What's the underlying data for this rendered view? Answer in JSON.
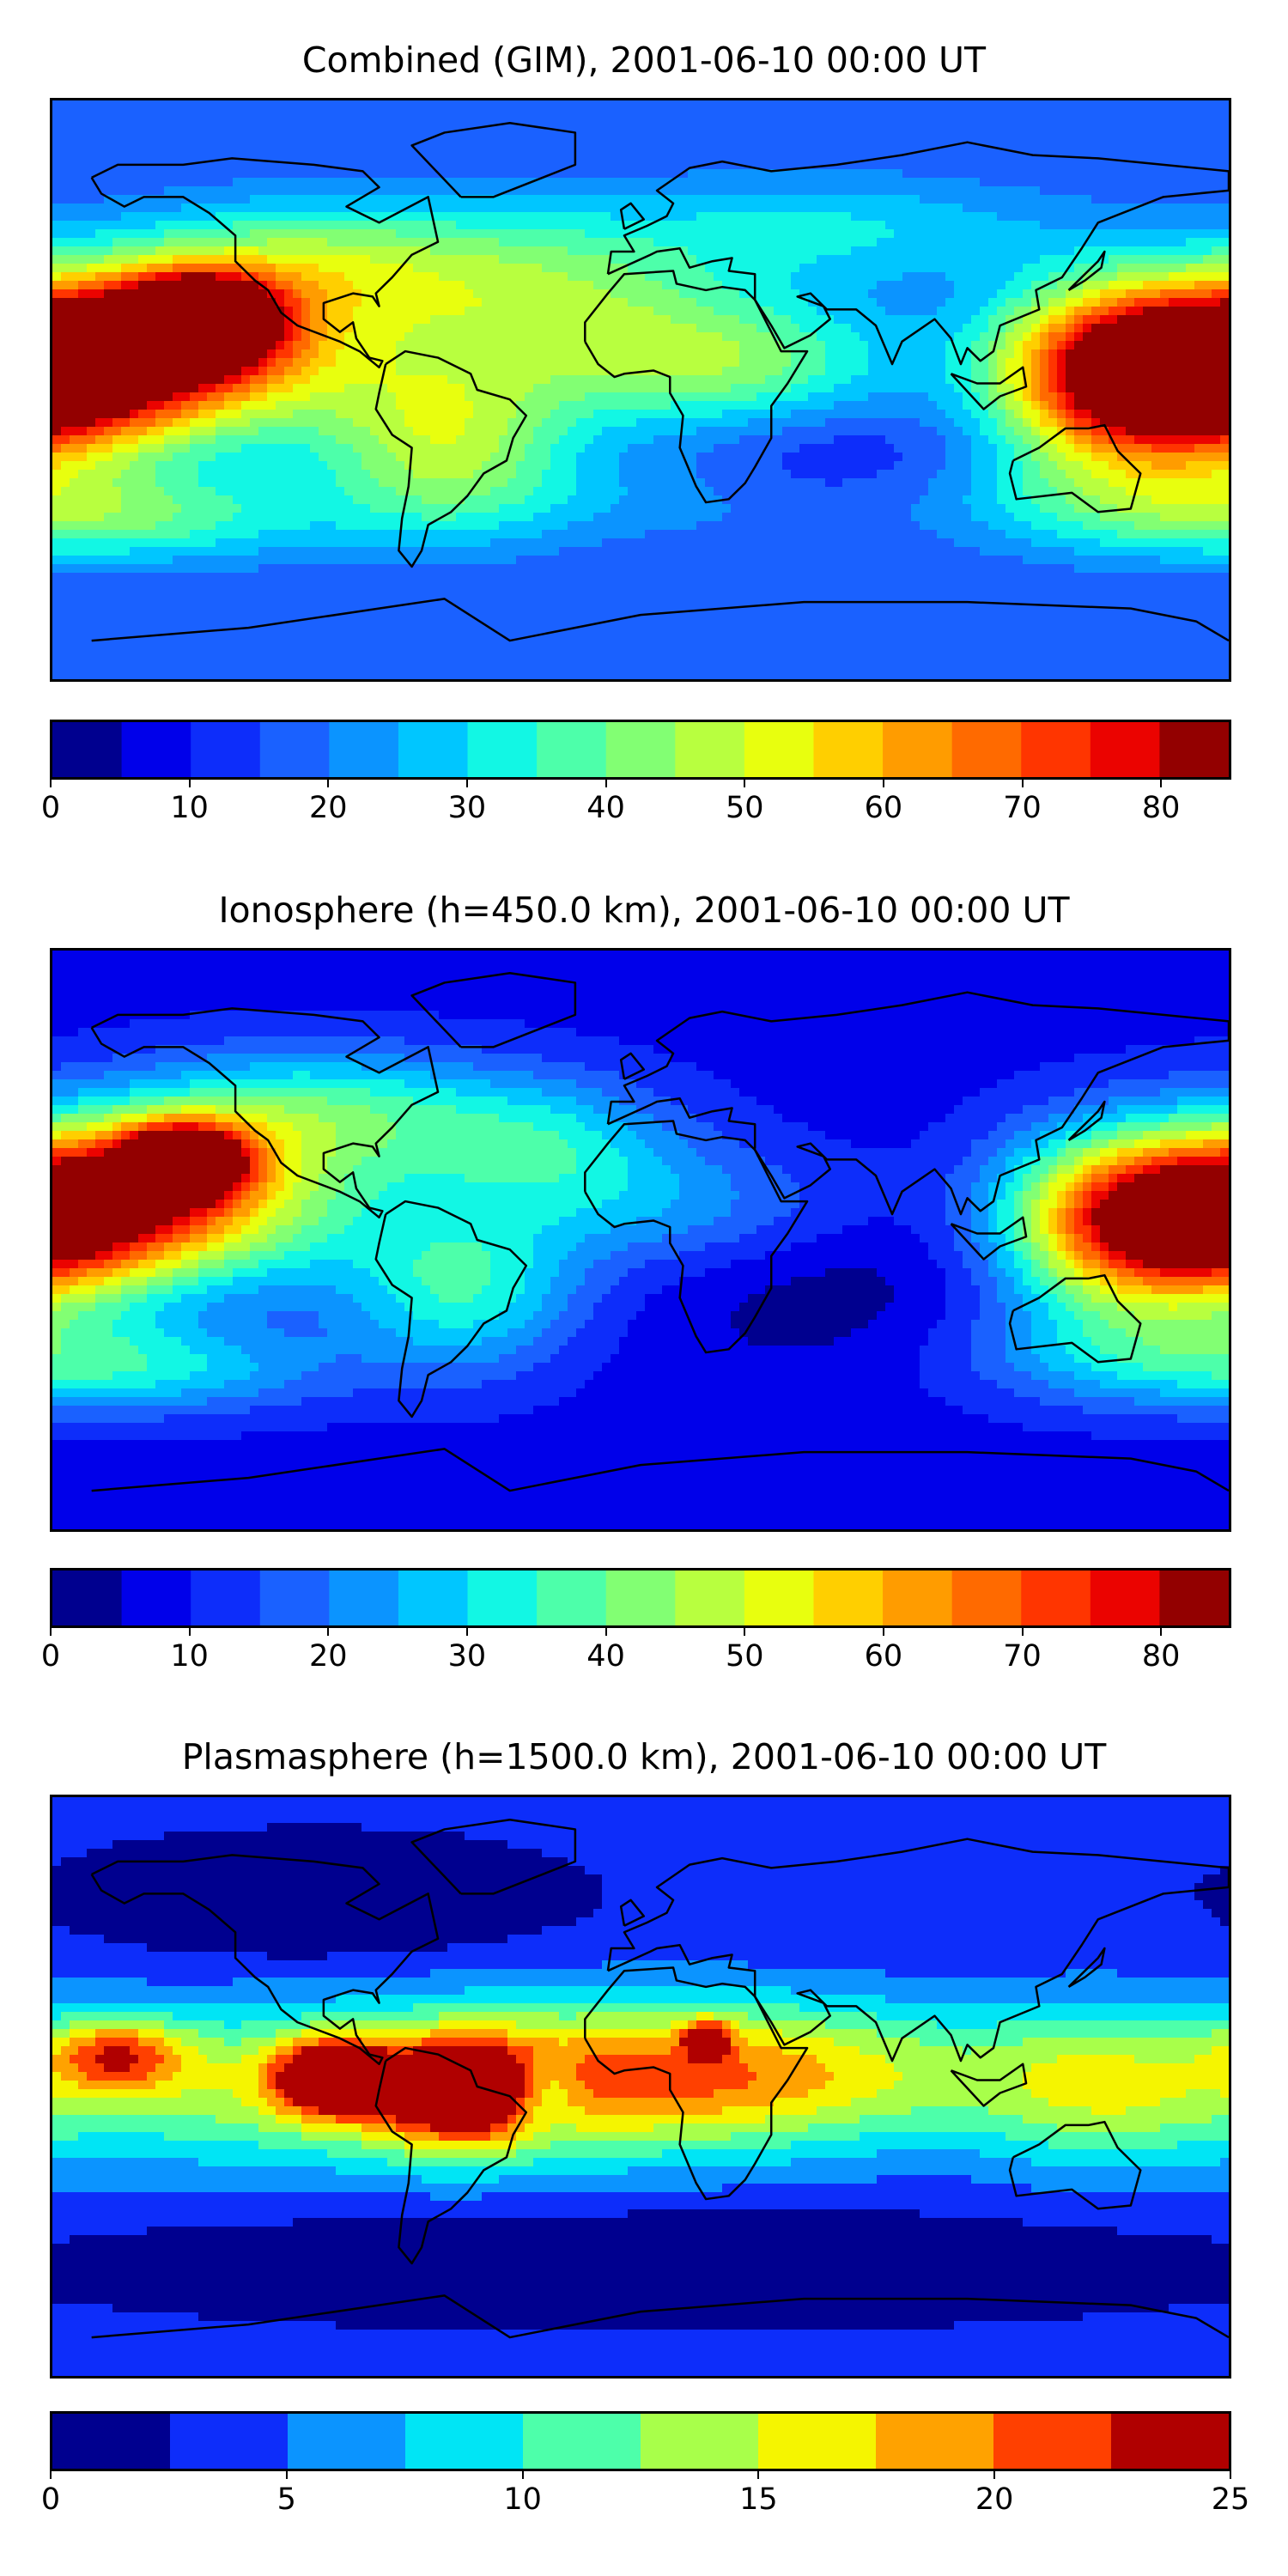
{
  "figure": {
    "background": "#ffffff"
  },
  "chart_data": [
    {
      "type": "heatmap",
      "title": "Combined (GIM), 2001-06-10 00:00 UT",
      "projection": "plate-carree",
      "xlim": [
        -180,
        180
      ],
      "ylim": [
        -90,
        90
      ],
      "base_value": 15,
      "hotspots": [
        {
          "lon": -150,
          "lat": 12,
          "value": 79,
          "sx": 42,
          "sy": 18
        },
        {
          "lon": -135,
          "lat": 22,
          "value": 81,
          "sx": 16,
          "sy": 9
        },
        {
          "lon": 170,
          "lat": 3,
          "value": 74,
          "sx": 30,
          "sy": 18
        },
        {
          "lon": 140,
          "lat": 5,
          "value": 50,
          "sx": 25,
          "sy": 20
        },
        {
          "lon": -60,
          "lat": -15,
          "value": 46,
          "sx": 28,
          "sy": 20
        },
        {
          "lon": 25,
          "lat": 8,
          "value": 42,
          "sx": 40,
          "sy": 15
        },
        {
          "lon": -30,
          "lat": 30,
          "value": 38,
          "sx": 40,
          "sy": 18
        },
        {
          "lon": -100,
          "lat": 40,
          "value": 38,
          "sx": 40,
          "sy": 14
        },
        {
          "lon": 60,
          "lat": 50,
          "value": 30,
          "sx": 50,
          "sy": 12
        },
        {
          "lon": -150,
          "lat": -40,
          "value": 34,
          "sx": 40,
          "sy": 10
        },
        {
          "lon": 150,
          "lat": -35,
          "value": 32,
          "sx": 40,
          "sy": 12
        },
        {
          "lon": 0,
          "lat": -35,
          "value": 22,
          "sx": 60,
          "sy": 10
        },
        {
          "lon": 60,
          "lat": -20,
          "value": 8,
          "sx": 30,
          "sy": 14
        }
      ],
      "colorbar": {
        "boundaries": [
          0,
          5,
          10,
          15,
          20,
          25,
          30,
          35,
          40,
          45,
          50,
          55,
          60,
          65,
          70,
          75,
          80,
          85
        ],
        "colors": [
          "#00008f",
          "#0000ea",
          "#0d2dfa",
          "#1a61ff",
          "#0b94ff",
          "#00c6ff",
          "#12f7e4",
          "#4dffaa",
          "#82ff73",
          "#b8ff3f",
          "#e8ff0e",
          "#ffcf00",
          "#ff9c00",
          "#ff6a00",
          "#ff3500",
          "#eb0300",
          "#930000"
        ],
        "ticks": [
          0,
          10,
          20,
          30,
          40,
          50,
          60,
          70,
          80
        ],
        "tick_labels": [
          "0",
          "10",
          "20",
          "30",
          "40",
          "50",
          "60",
          "70",
          "80"
        ]
      }
    },
    {
      "type": "heatmap",
      "title": "Ionosphere  (h=450.0 km), 2001-06-10 00:00 UT",
      "projection": "plate-carree",
      "xlim": [
        -180,
        180
      ],
      "ylim": [
        -90,
        90
      ],
      "base_value": 8,
      "hotspots": [
        {
          "lon": -150,
          "lat": 12,
          "value": 66,
          "sx": 42,
          "sy": 18
        },
        {
          "lon": -140,
          "lat": 25,
          "value": 68,
          "sx": 14,
          "sy": 8
        },
        {
          "lon": 170,
          "lat": 5,
          "value": 62,
          "sx": 28,
          "sy": 18
        },
        {
          "lon": 140,
          "lat": 5,
          "value": 38,
          "sx": 25,
          "sy": 20
        },
        {
          "lon": -55,
          "lat": -15,
          "value": 34,
          "sx": 26,
          "sy": 18
        },
        {
          "lon": -100,
          "lat": 40,
          "value": 34,
          "sx": 40,
          "sy": 14
        },
        {
          "lon": -30,
          "lat": 30,
          "value": 28,
          "sx": 30,
          "sy": 15
        },
        {
          "lon": 10,
          "lat": 10,
          "value": 22,
          "sx": 40,
          "sy": 14
        },
        {
          "lon": -150,
          "lat": -40,
          "value": 28,
          "sx": 40,
          "sy": 10
        },
        {
          "lon": 150,
          "lat": -35,
          "value": 24,
          "sx": 40,
          "sy": 12
        },
        {
          "lon": 60,
          "lat": -15,
          "value": 2,
          "sx": 40,
          "sy": 20
        }
      ],
      "colorbar": {
        "boundaries": [
          0,
          5,
          10,
          15,
          20,
          25,
          30,
          35,
          40,
          45,
          50,
          55,
          60,
          65,
          70,
          75,
          80,
          85
        ],
        "colors": [
          "#00008f",
          "#0000ea",
          "#0d2dfa",
          "#1a61ff",
          "#0b94ff",
          "#00c6ff",
          "#12f7e4",
          "#4dffaa",
          "#82ff73",
          "#b8ff3f",
          "#e8ff0e",
          "#ffcf00",
          "#ff9c00",
          "#ff6a00",
          "#ff3500",
          "#eb0300",
          "#930000"
        ],
        "ticks": [
          0,
          10,
          20,
          30,
          40,
          50,
          60,
          70,
          80
        ],
        "tick_labels": [
          "0",
          "10",
          "20",
          "30",
          "40",
          "50",
          "60",
          "70",
          "80"
        ]
      }
    },
    {
      "type": "heatmap",
      "title": "Plasmasphere (h=1500.0 km), 2001-06-10 00:00 UT",
      "projection": "plate-carree",
      "xlim": [
        -180,
        180
      ],
      "ylim": [
        -90,
        90
      ],
      "base_value": 3,
      "hotspots": [
        {
          "lon": -80,
          "lat": 0,
          "value": 15,
          "sx": 100,
          "sy": 18
        },
        {
          "lon": 30,
          "lat": 5,
          "value": 14,
          "sx": 60,
          "sy": 16
        },
        {
          "lon": -95,
          "lat": 3,
          "value": 21,
          "sx": 12,
          "sy": 8
        },
        {
          "lon": -55,
          "lat": -2,
          "value": 18,
          "sx": 18,
          "sy": 12
        },
        {
          "lon": -160,
          "lat": 10,
          "value": 15,
          "sx": 15,
          "sy": 8
        },
        {
          "lon": 20,
          "lat": 15,
          "value": 16,
          "sx": 5,
          "sy": 4
        },
        {
          "lon": -30,
          "lat": -2,
          "value": -5,
          "sx": 8,
          "sy": 8
        },
        {
          "lon": 140,
          "lat": 0,
          "value": 10,
          "sx": 30,
          "sy": 18
        },
        {
          "lon": -100,
          "lat": 58,
          "value": -4,
          "sx": 40,
          "sy": 10
        },
        {
          "lon": 0,
          "lat": -55,
          "value": -2,
          "sx": 100,
          "sy": 10
        }
      ],
      "colorbar": {
        "boundaries": [
          0,
          2.5,
          5,
          7.5,
          10,
          12.5,
          15,
          17.5,
          20,
          22.5,
          25
        ],
        "colors": [
          "#00008f",
          "#0d2dfa",
          "#0b94ff",
          "#00e5f5",
          "#4dffaa",
          "#a8ff4a",
          "#f5f500",
          "#ffa200",
          "#ff4000",
          "#b00000"
        ],
        "ticks": [
          0,
          5,
          10,
          15,
          20,
          25
        ],
        "tick_labels": [
          "0",
          "5",
          "10",
          "15",
          "20",
          "25"
        ]
      }
    }
  ]
}
